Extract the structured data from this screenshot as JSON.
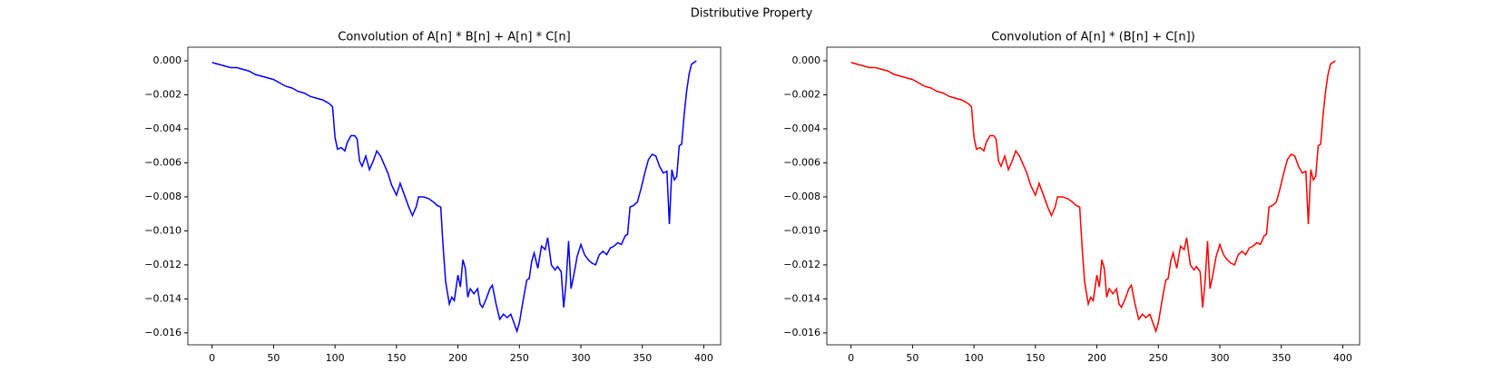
{
  "title": "Distributive Property",
  "chart_data": [
    {
      "type": "line",
      "title": "Convolution of A[n] * B[n] + A[n] * C[n]",
      "xlim": [
        -19.7,
        413.7
      ],
      "ylim": [
        -0.0167,
        0.0008
      ],
      "xticks": [
        0,
        50,
        100,
        150,
        200,
        250,
        300,
        350,
        400
      ],
      "yticks": [
        {
          "value": 0,
          "label": "0.000"
        },
        {
          "value": -0.002,
          "label": "−0.002"
        },
        {
          "value": -0.004,
          "label": "−0.004"
        },
        {
          "value": -0.006,
          "label": "−0.006"
        },
        {
          "value": -0.008,
          "label": "−0.008"
        },
        {
          "value": -0.01,
          "label": "−0.010"
        },
        {
          "value": -0.012,
          "label": "−0.012"
        },
        {
          "value": -0.014,
          "label": "−0.014"
        },
        {
          "value": -0.016,
          "label": "−0.016"
        }
      ],
      "x": [
        0,
        5,
        10,
        15,
        20,
        25,
        30,
        35,
        40,
        45,
        50,
        55,
        60,
        65,
        70,
        75,
        80,
        85,
        90,
        95,
        98,
        100,
        102,
        105,
        108,
        110,
        113,
        116,
        118,
        120,
        122,
        125,
        128,
        131,
        134,
        137,
        140,
        143,
        146,
        150,
        153,
        156,
        160,
        163,
        166,
        168,
        172,
        176,
        180,
        183,
        186,
        188,
        190,
        193,
        195,
        197,
        200,
        202,
        204,
        206,
        208,
        210,
        213,
        216,
        218,
        220,
        223,
        226,
        228,
        231,
        234,
        237,
        240,
        243,
        246,
        248,
        250,
        253,
        256,
        258,
        260,
        262,
        265,
        268,
        271,
        273,
        276,
        279,
        281,
        284,
        286,
        288,
        290,
        292,
        294,
        297,
        300,
        303,
        306,
        309,
        312,
        315,
        318,
        321,
        324,
        327,
        330,
        333,
        336,
        338,
        340,
        343,
        346,
        349,
        352,
        355,
        358,
        361,
        364,
        367,
        370,
        372,
        374,
        376,
        378,
        380,
        382,
        384,
        386,
        388,
        390,
        394
      ],
      "series": [
        {
          "name": "A*B + A*C",
          "color": "#0000ff",
          "values": [
            -0.0001,
            -0.0002,
            -0.0003,
            -0.0004,
            -0.0004,
            -0.0005,
            -0.0006,
            -0.0008,
            -0.0009,
            -0.001,
            -0.0011,
            -0.0013,
            -0.0015,
            -0.0016,
            -0.0018,
            -0.0019,
            -0.0021,
            -0.0022,
            -0.0023,
            -0.0025,
            -0.0027,
            -0.0045,
            -0.0052,
            -0.0051,
            -0.0053,
            -0.0048,
            -0.0044,
            -0.0044,
            -0.0046,
            -0.0059,
            -0.0062,
            -0.0056,
            -0.0064,
            -0.0059,
            -0.0053,
            -0.0056,
            -0.0061,
            -0.0066,
            -0.0073,
            -0.0079,
            -0.0072,
            -0.0078,
            -0.0086,
            -0.0091,
            -0.0086,
            -0.008,
            -0.008,
            -0.0081,
            -0.0083,
            -0.0085,
            -0.0086,
            -0.011,
            -0.013,
            -0.0143,
            -0.0139,
            -0.0141,
            -0.0126,
            -0.0133,
            -0.0117,
            -0.0122,
            -0.0139,
            -0.0134,
            -0.0137,
            -0.0134,
            -0.0143,
            -0.0145,
            -0.014,
            -0.0134,
            -0.0132,
            -0.0143,
            -0.0152,
            -0.0149,
            -0.0151,
            -0.0149,
            -0.0155,
            -0.0159,
            -0.0154,
            -0.0141,
            -0.0129,
            -0.0128,
            -0.0118,
            -0.0113,
            -0.0122,
            -0.0109,
            -0.0111,
            -0.0104,
            -0.012,
            -0.0123,
            -0.0121,
            -0.0124,
            -0.0145,
            -0.013,
            -0.0106,
            -0.0134,
            -0.0127,
            -0.0115,
            -0.0108,
            -0.0114,
            -0.0117,
            -0.0119,
            -0.012,
            -0.0114,
            -0.0112,
            -0.0114,
            -0.011,
            -0.0109,
            -0.0107,
            -0.0108,
            -0.0103,
            -0.0102,
            -0.0086,
            -0.0085,
            -0.0083,
            -0.0075,
            -0.0066,
            -0.0058,
            -0.0055,
            -0.0056,
            -0.0062,
            -0.0066,
            -0.0065,
            -0.0096,
            -0.0064,
            -0.007,
            -0.0068,
            -0.005,
            -0.0049,
            -0.0032,
            -0.0018,
            -0.0008,
            -0.0002,
            0
          ]
        }
      ]
    },
    {
      "type": "line",
      "title": "Convolution of A[n] * (B[n] + C[n])",
      "xlim": [
        -19.7,
        413.7
      ],
      "ylim": [
        -0.0167,
        0.0008
      ],
      "xticks": [
        0,
        50,
        100,
        150,
        200,
        250,
        300,
        350,
        400
      ],
      "yticks": [
        {
          "value": 0,
          "label": "0.000"
        },
        {
          "value": -0.002,
          "label": "−0.002"
        },
        {
          "value": -0.004,
          "label": "−0.004"
        },
        {
          "value": -0.006,
          "label": "−0.006"
        },
        {
          "value": -0.008,
          "label": "−0.008"
        },
        {
          "value": -0.01,
          "label": "−0.010"
        },
        {
          "value": -0.012,
          "label": "−0.012"
        },
        {
          "value": -0.014,
          "label": "−0.014"
        },
        {
          "value": -0.016,
          "label": "−0.016"
        }
      ],
      "x": [
        0,
        5,
        10,
        15,
        20,
        25,
        30,
        35,
        40,
        45,
        50,
        55,
        60,
        65,
        70,
        75,
        80,
        85,
        90,
        95,
        98,
        100,
        102,
        105,
        108,
        110,
        113,
        116,
        118,
        120,
        122,
        125,
        128,
        131,
        134,
        137,
        140,
        143,
        146,
        150,
        153,
        156,
        160,
        163,
        166,
        168,
        172,
        176,
        180,
        183,
        186,
        188,
        190,
        193,
        195,
        197,
        200,
        202,
        204,
        206,
        208,
        210,
        213,
        216,
        218,
        220,
        223,
        226,
        228,
        231,
        234,
        237,
        240,
        243,
        246,
        248,
        250,
        253,
        256,
        258,
        260,
        262,
        265,
        268,
        271,
        273,
        276,
        279,
        281,
        284,
        286,
        288,
        290,
        292,
        294,
        297,
        300,
        303,
        306,
        309,
        312,
        315,
        318,
        321,
        324,
        327,
        330,
        333,
        336,
        338,
        340,
        343,
        346,
        349,
        352,
        355,
        358,
        361,
        364,
        367,
        370,
        372,
        374,
        376,
        378,
        380,
        382,
        384,
        386,
        388,
        390,
        394
      ],
      "series": [
        {
          "name": "A*(B + C)",
          "color": "#ff0000",
          "values": [
            -0.0001,
            -0.0002,
            -0.0003,
            -0.0004,
            -0.0004,
            -0.0005,
            -0.0006,
            -0.0008,
            -0.0009,
            -0.001,
            -0.0011,
            -0.0013,
            -0.0015,
            -0.0016,
            -0.0018,
            -0.0019,
            -0.0021,
            -0.0022,
            -0.0023,
            -0.0025,
            -0.0027,
            -0.0045,
            -0.0052,
            -0.0051,
            -0.0053,
            -0.0048,
            -0.0044,
            -0.0044,
            -0.0046,
            -0.0059,
            -0.0062,
            -0.0056,
            -0.0064,
            -0.0059,
            -0.0053,
            -0.0056,
            -0.0061,
            -0.0066,
            -0.0073,
            -0.0079,
            -0.0072,
            -0.0078,
            -0.0086,
            -0.0091,
            -0.0086,
            -0.008,
            -0.008,
            -0.0081,
            -0.0083,
            -0.0085,
            -0.0086,
            -0.011,
            -0.013,
            -0.0143,
            -0.0139,
            -0.0141,
            -0.0126,
            -0.0133,
            -0.0117,
            -0.0122,
            -0.0139,
            -0.0134,
            -0.0137,
            -0.0134,
            -0.0143,
            -0.0145,
            -0.014,
            -0.0134,
            -0.0132,
            -0.0143,
            -0.0152,
            -0.0149,
            -0.0151,
            -0.0149,
            -0.0155,
            -0.0159,
            -0.0154,
            -0.0141,
            -0.0129,
            -0.0128,
            -0.0118,
            -0.0113,
            -0.0122,
            -0.0109,
            -0.0111,
            -0.0104,
            -0.012,
            -0.0123,
            -0.0121,
            -0.0124,
            -0.0145,
            -0.013,
            -0.0106,
            -0.0134,
            -0.0127,
            -0.0115,
            -0.0108,
            -0.0114,
            -0.0117,
            -0.0119,
            -0.012,
            -0.0114,
            -0.0112,
            -0.0114,
            -0.011,
            -0.0109,
            -0.0107,
            -0.0108,
            -0.0103,
            -0.0102,
            -0.0086,
            -0.0085,
            -0.0083,
            -0.0075,
            -0.0066,
            -0.0058,
            -0.0055,
            -0.0056,
            -0.0062,
            -0.0066,
            -0.0065,
            -0.0096,
            -0.0064,
            -0.007,
            -0.0068,
            -0.005,
            -0.0049,
            -0.0032,
            -0.0018,
            -0.0008,
            -0.0002,
            0
          ]
        }
      ]
    }
  ]
}
